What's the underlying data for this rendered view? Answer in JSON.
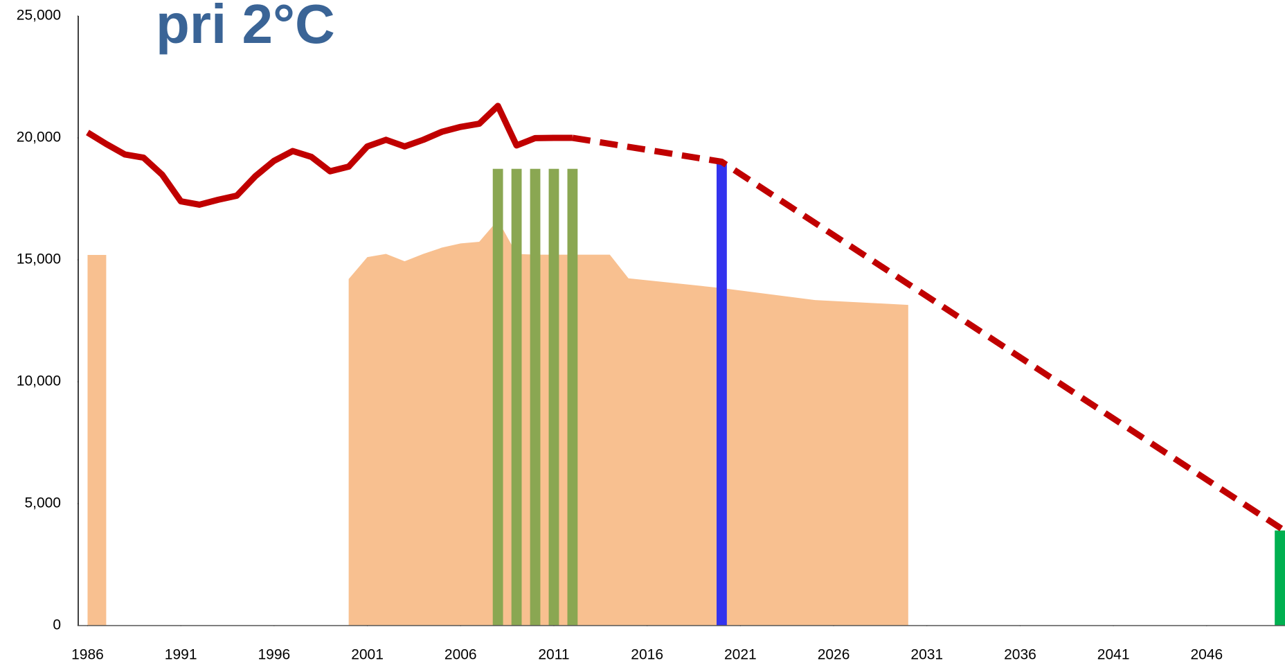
{
  "chart_data": {
    "type": "combo",
    "title": "pri 2°C",
    "xlim": [
      1985.5,
      2050.2
    ],
    "ylim": [
      0,
      25000
    ],
    "xticks": [
      1986,
      1991,
      1996,
      2001,
      2006,
      2011,
      2016,
      2021,
      2026,
      2031,
      2036,
      2041,
      2046
    ],
    "yticks": [
      0,
      {
        "value": 5000,
        "label": "5,000"
      },
      {
        "value": 10000,
        "label": "10,000"
      },
      {
        "value": 15000,
        "label": "15,000"
      },
      {
        "value": 20000,
        "label": "20,000"
      },
      {
        "value": 25000,
        "label": "25,000"
      }
    ],
    "grid": false,
    "area": {
      "color": "#f8c090",
      "x": [
        1986,
        1987,
        1993,
        2000,
        2001,
        2002,
        2003,
        2004,
        2005,
        2006,
        2007,
        2008,
        2009,
        2010,
        2011,
        2012,
        2013,
        2014,
        2015,
        2020,
        2025,
        2030
      ],
      "values": [
        15200,
        15200,
        null,
        14210,
        15110,
        15240,
        14940,
        15240,
        15500,
        15670,
        15740,
        16630,
        15240,
        15210,
        15210,
        15210,
        15210,
        15210,
        14240,
        13840,
        13350,
        13150
      ]
    },
    "bars": [
      {
        "color": "#8aa752",
        "x": [
          2008,
          2009,
          2010,
          2011,
          2012
        ],
        "values": [
          18730,
          18730,
          18730,
          18730,
          18730
        ]
      },
      {
        "color": "#3333ee",
        "x": [
          2020
        ],
        "values": [
          19000
        ]
      },
      {
        "color": "#00b050",
        "x": [
          2050
        ],
        "values": [
          3900
        ]
      }
    ],
    "line": {
      "color": "#c00000",
      "x": [
        1986,
        1987,
        1988,
        1989,
        1990,
        1991,
        1992,
        1993,
        1994,
        1995,
        1996,
        1997,
        1998,
        1999,
        2000,
        2001,
        2002,
        2003,
        2004,
        2005,
        2006,
        2007,
        2008,
        2009,
        2010,
        2011,
        2012
      ],
      "values": [
        20220,
        19750,
        19320,
        19190,
        18490,
        17400,
        17260,
        17460,
        17630,
        18430,
        19060,
        19460,
        19220,
        18630,
        18820,
        19650,
        19920,
        19650,
        19920,
        20250,
        20450,
        20580,
        21310,
        19690,
        19990,
        20000,
        20000
      ]
    },
    "projection": {
      "color": "#c00000",
      "dashed": true,
      "x": [
        2012,
        2020,
        2050
      ],
      "values": [
        20000,
        19020,
        3980
      ]
    }
  }
}
